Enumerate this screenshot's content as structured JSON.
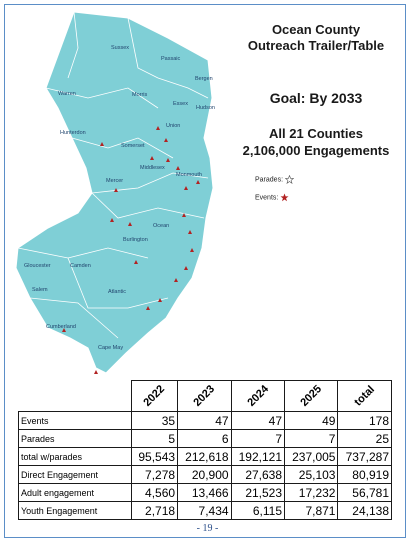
{
  "title_line1": "Ocean County",
  "title_line2": "Outreach Trailer/Table",
  "goal": "Goal: By 2033",
  "counties_line": "All 21 Counties",
  "engagements_line": "2,106,000 Engagements",
  "legend": {
    "parades": "Parades:",
    "events": "Events:"
  },
  "counties": [
    "Sussex",
    "Passaic",
    "Bergen",
    "Warren",
    "Morris",
    "Essex",
    "Hudson",
    "Union",
    "Hunterdon",
    "Somerset",
    "Middlesex",
    "Mercer",
    "Monmouth",
    "Ocean",
    "Burlington",
    "Gloucester",
    "Camden",
    "Salem",
    "Atlantic",
    "Cumberland",
    "Cape May"
  ],
  "table": {
    "headers": [
      "2022",
      "2023",
      "2024",
      "2025",
      "total"
    ],
    "rows": [
      {
        "label": "Events",
        "values": [
          "35",
          "47",
          "47",
          "49",
          "178"
        ]
      },
      {
        "label": "Parades",
        "values": [
          "5",
          "6",
          "7",
          "7",
          "25"
        ]
      },
      {
        "label": "total w/parades",
        "values": [
          "95,543",
          "212,618",
          "192,121",
          "237,005",
          "737,287"
        ]
      },
      {
        "label": "Direct Engagement",
        "values": [
          "7,278",
          "20,900",
          "27,638",
          "25,103",
          "80,919"
        ]
      },
      {
        "label": "Adult engagement",
        "values": [
          "4,560",
          "13,466",
          "21,523",
          "17,232",
          "56,781"
        ]
      },
      {
        "label": "Youth Engagement",
        "values": [
          "2,718",
          "7,434",
          "6,115",
          "7,871",
          "24,138"
        ]
      }
    ]
  },
  "page_number": "- 19 -",
  "colors": {
    "map_fill": "#7fcfd6",
    "border": "#5b8ec7",
    "marker": "#b22222"
  }
}
